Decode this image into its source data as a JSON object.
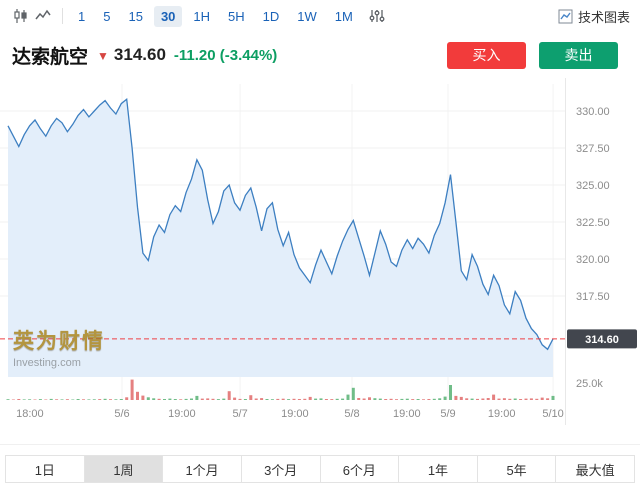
{
  "toolbar": {
    "timeframes": [
      {
        "label": "1",
        "active": false
      },
      {
        "label": "5",
        "active": false
      },
      {
        "label": "15",
        "active": false
      },
      {
        "label": "30",
        "active": true
      },
      {
        "label": "1H",
        "active": false
      },
      {
        "label": "5H",
        "active": false
      },
      {
        "label": "1D",
        "active": false
      },
      {
        "label": "1W",
        "active": false
      },
      {
        "label": "1M",
        "active": false
      }
    ],
    "tech_chart_label": "技术图表"
  },
  "quote": {
    "name": "达索航空",
    "arrow_glyph": "▼",
    "price": "314.60",
    "change": "-11.20 (-3.44%)",
    "direction": "down",
    "buy_label": "买入",
    "sell_label": "卖出"
  },
  "watermark": {
    "brand": "英为财情",
    "site": "Investing.com"
  },
  "chart_data": {
    "type": "area",
    "symbol": "达索航空",
    "interval": "30",
    "last_price": 314.6,
    "price_tag": "314.60",
    "y_axis": {
      "tick_labels": [
        "330.00",
        "327.50",
        "325.00",
        "322.50",
        "320.00",
        "317.50"
      ],
      "tick_values": [
        330,
        327.5,
        325,
        322.5,
        320,
        317.5
      ]
    },
    "x_axis": {
      "labels": [
        {
          "text": "18:00",
          "pos": 0.053,
          "major": false
        },
        {
          "text": "5/6",
          "pos": 0.216,
          "major": true
        },
        {
          "text": "19:00",
          "pos": 0.322,
          "major": false
        },
        {
          "text": "5/7",
          "pos": 0.425,
          "major": true
        },
        {
          "text": "19:00",
          "pos": 0.522,
          "major": false
        },
        {
          "text": "5/8",
          "pos": 0.623,
          "major": true
        },
        {
          "text": "19:00",
          "pos": 0.72,
          "major": false
        },
        {
          "text": "5/9",
          "pos": 0.793,
          "major": true
        },
        {
          "text": "19:00",
          "pos": 0.888,
          "major": false
        },
        {
          "text": "5/10",
          "pos": 0.979,
          "major": true
        }
      ]
    },
    "prices": [
      329.0,
      328.3,
      327.6,
      328.4,
      329.0,
      329.4,
      328.8,
      328.3,
      329.0,
      329.5,
      329.2,
      328.6,
      329.1,
      329.7,
      330.1,
      329.6,
      330.0,
      330.4,
      330.7,
      330.2,
      329.8,
      330.5,
      330.8,
      327.5,
      323.5,
      320.4,
      319.9,
      321.5,
      322.3,
      321.8,
      323.0,
      323.6,
      323.2,
      324.5,
      325.4,
      326.7,
      326.0,
      324.0,
      322.4,
      323.2,
      324.6,
      325.0,
      323.8,
      323.3,
      324.3,
      324.8,
      323.5,
      321.9,
      323.4,
      323.8,
      322.0,
      320.9,
      321.8,
      320.3,
      319.4,
      318.9,
      318.4,
      319.6,
      320.6,
      319.8,
      319.0,
      320.2,
      321.2,
      322.0,
      322.6,
      321.4,
      320.2,
      318.9,
      320.4,
      321.9,
      321.0,
      319.8,
      319.5,
      320.6,
      321.3,
      320.7,
      321.4,
      321.0,
      320.4,
      321.6,
      322.4,
      323.8,
      325.7,
      322.5,
      319.2,
      318.6,
      320.3,
      319.5,
      318.3,
      317.6,
      318.9,
      318.2,
      316.9,
      316.3,
      317.8,
      317.2,
      316.0,
      315.3,
      314.9,
      314.2,
      313.9,
      314.6
    ],
    "volume": {
      "axis_label": "25.0k",
      "bars": [
        [
          1.2,
          "g"
        ],
        [
          0.8,
          "r"
        ],
        [
          1.5,
          "r"
        ],
        [
          0.9,
          "g"
        ],
        [
          1.1,
          "g"
        ],
        [
          0.7,
          "r"
        ],
        [
          1.3,
          "g"
        ],
        [
          0.8,
          "r"
        ],
        [
          1.6,
          "g"
        ],
        [
          1.0,
          "r"
        ],
        [
          0.9,
          "g"
        ],
        [
          1.2,
          "r"
        ],
        [
          0.8,
          "g"
        ],
        [
          1.4,
          "g"
        ],
        [
          1.0,
          "r"
        ],
        [
          0.9,
          "g"
        ],
        [
          1.1,
          "g"
        ],
        [
          1.3,
          "r"
        ],
        [
          1.8,
          "g"
        ],
        [
          1.2,
          "r"
        ],
        [
          1.0,
          "g"
        ],
        [
          1.5,
          "g"
        ],
        [
          4.0,
          "r"
        ],
        [
          30.0,
          "r"
        ],
        [
          12.0,
          "r"
        ],
        [
          6.5,
          "r"
        ],
        [
          4.0,
          "g"
        ],
        [
          2.5,
          "g"
        ],
        [
          1.8,
          "r"
        ],
        [
          1.5,
          "g"
        ],
        [
          2.0,
          "g"
        ],
        [
          1.4,
          "g"
        ],
        [
          1.1,
          "r"
        ],
        [
          1.6,
          "g"
        ],
        [
          2.2,
          "g"
        ],
        [
          6.0,
          "g"
        ],
        [
          2.0,
          "r"
        ],
        [
          2.4,
          "r"
        ],
        [
          1.8,
          "r"
        ],
        [
          1.3,
          "g"
        ],
        [
          2.0,
          "g"
        ],
        [
          13.0,
          "r"
        ],
        [
          3.5,
          "r"
        ],
        [
          1.6,
          "r"
        ],
        [
          1.4,
          "g"
        ],
        [
          7.0,
          "r"
        ],
        [
          2.2,
          "r"
        ],
        [
          2.8,
          "r"
        ],
        [
          1.5,
          "g"
        ],
        [
          1.2,
          "g"
        ],
        [
          1.6,
          "r"
        ],
        [
          1.9,
          "r"
        ],
        [
          1.3,
          "g"
        ],
        [
          1.7,
          "r"
        ],
        [
          1.4,
          "r"
        ],
        [
          1.8,
          "r"
        ],
        [
          4.5,
          "r"
        ],
        [
          2.0,
          "g"
        ],
        [
          2.4,
          "g"
        ],
        [
          1.5,
          "r"
        ],
        [
          1.3,
          "r"
        ],
        [
          1.7,
          "g"
        ],
        [
          2.1,
          "g"
        ],
        [
          8.0,
          "g"
        ],
        [
          18.0,
          "g"
        ],
        [
          3.0,
          "r"
        ],
        [
          2.2,
          "r"
        ],
        [
          4.0,
          "r"
        ],
        [
          2.6,
          "g"
        ],
        [
          2.0,
          "g"
        ],
        [
          1.5,
          "r"
        ],
        [
          1.8,
          "r"
        ],
        [
          1.2,
          "r"
        ],
        [
          1.6,
          "g"
        ],
        [
          1.9,
          "g"
        ],
        [
          1.3,
          "r"
        ],
        [
          1.5,
          "g"
        ],
        [
          1.1,
          "r"
        ],
        [
          1.4,
          "r"
        ],
        [
          1.7,
          "g"
        ],
        [
          2.5,
          "g"
        ],
        [
          5.0,
          "g"
        ],
        [
          22.0,
          "g"
        ],
        [
          6.0,
          "r"
        ],
        [
          4.5,
          "r"
        ],
        [
          2.5,
          "r"
        ],
        [
          2.0,
          "g"
        ],
        [
          1.6,
          "r"
        ],
        [
          2.2,
          "r"
        ],
        [
          3.0,
          "r"
        ],
        [
          8.0,
          "r"
        ],
        [
          2.0,
          "r"
        ],
        [
          2.6,
          "r"
        ],
        [
          1.8,
          "r"
        ],
        [
          2.2,
          "g"
        ],
        [
          1.5,
          "r"
        ],
        [
          2.0,
          "r"
        ],
        [
          2.4,
          "r"
        ],
        [
          1.8,
          "r"
        ],
        [
          3.5,
          "r"
        ],
        [
          2.5,
          "r"
        ],
        [
          6.0,
          "g"
        ]
      ]
    },
    "colors": {
      "line": "#3d7fc1",
      "fill": "#e3eefa",
      "dashed": "#ef4044",
      "tag_bg": "#42464e",
      "tag_text": "#ffffff",
      "volume_up": "#57b173",
      "volume_down": "#e06a6a",
      "grid": "#f1f1f1",
      "axis_text": "#8c8c8c"
    }
  },
  "range_tabs": [
    {
      "label": "1日",
      "active": false
    },
    {
      "label": "1周",
      "active": true
    },
    {
      "label": "1个月",
      "active": false
    },
    {
      "label": "3个月",
      "active": false
    },
    {
      "label": "6个月",
      "active": false
    },
    {
      "label": "1年",
      "active": false
    },
    {
      "label": "5年",
      "active": false
    },
    {
      "label": "最大值",
      "active": false
    }
  ]
}
